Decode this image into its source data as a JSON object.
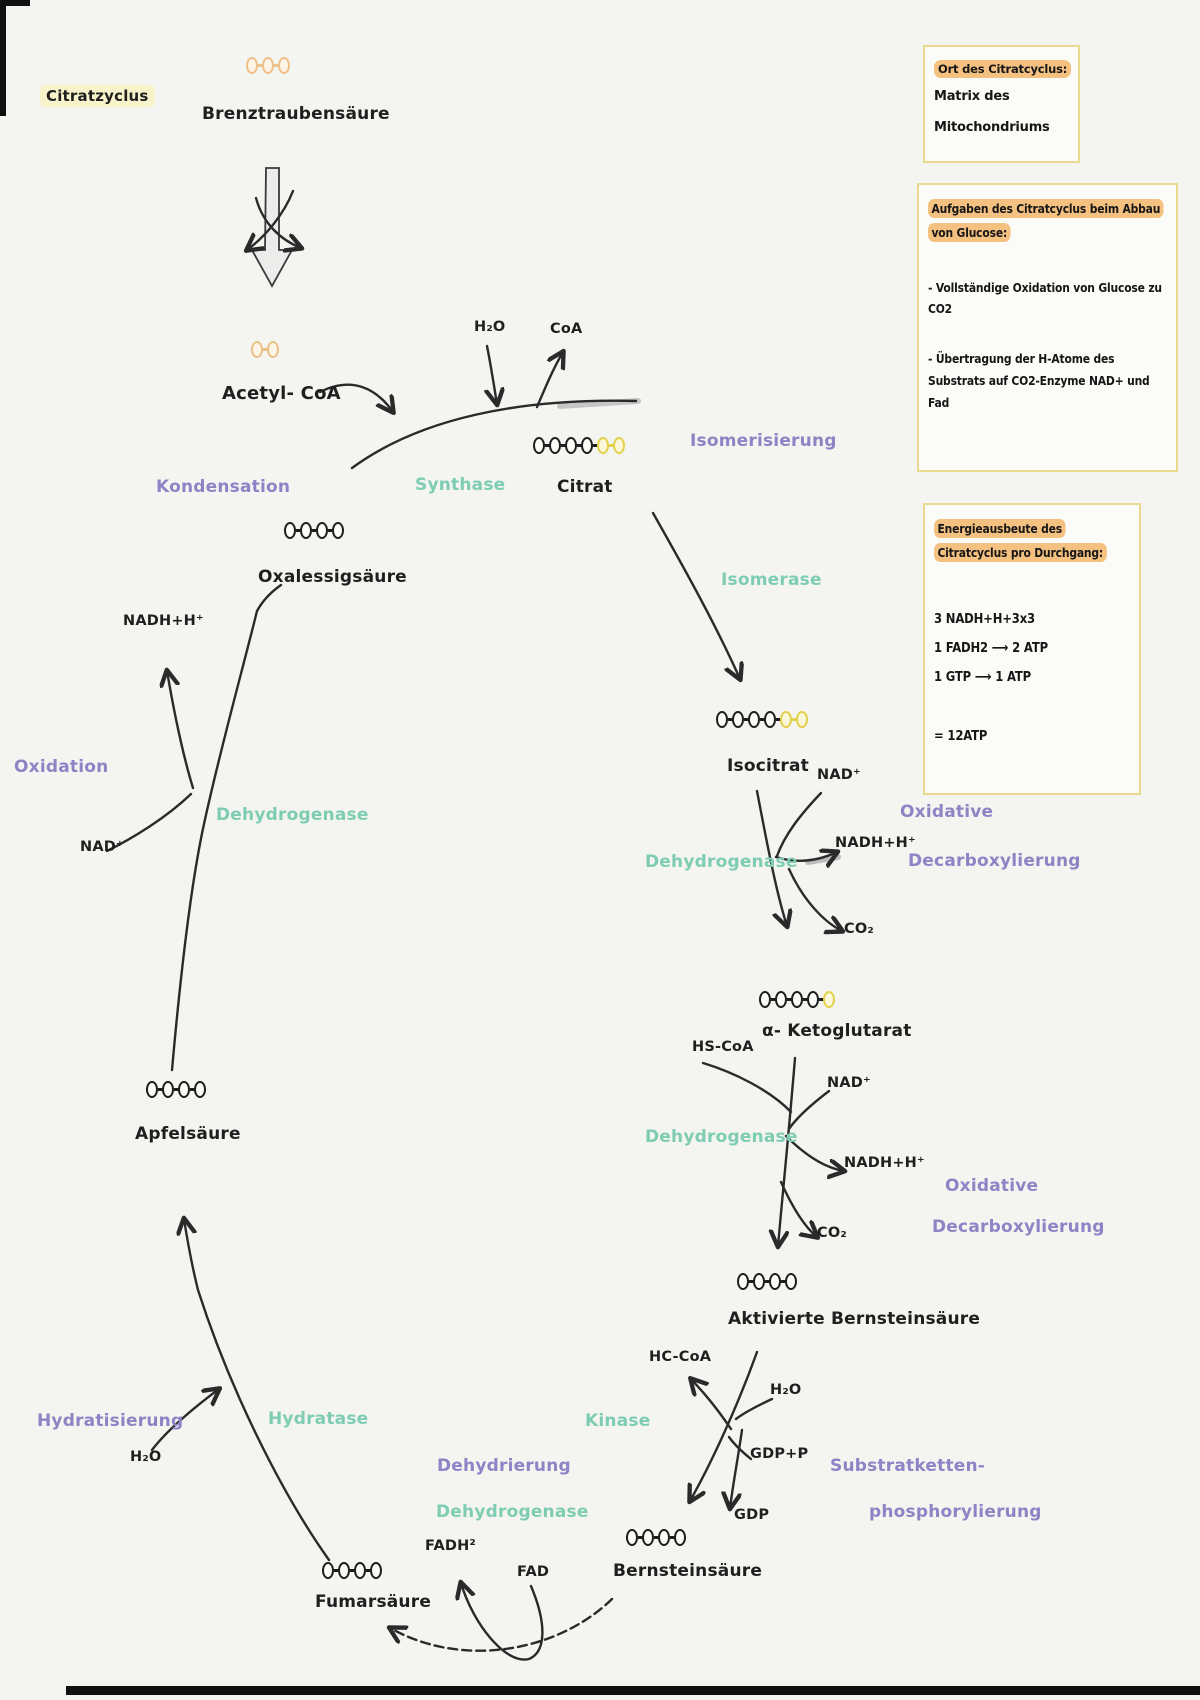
{
  "colors": {
    "purple": "#9083c5",
    "teal": "#7ecdb3",
    "orange": "#edc089",
    "yellow": "#e3d14b",
    "highlight": "#f5c181",
    "pale": "#f8f3cb",
    "boxborder": "#ead98e"
  },
  "labels": {
    "citratzyclus": "Citratzyclus",
    "brenztraubensaeure": "Brenztraubensäure",
    "acetyl_coa": "Acetyl- CoA",
    "h2o_top": "H₂O",
    "coa_top": "CoA",
    "kondensation": "Kondensation",
    "synthase": "Synthase",
    "citrat": "Citrat",
    "isomerisierung": "Isomerisierung",
    "oxalessigsaeure": "Oxalessigsäure",
    "isomerase": "Isomerase",
    "nadh_h_left": "NADH+H⁺",
    "oxidation": "Oxidation",
    "dehydrogenase_left": "Dehydrogenase",
    "nad_left": "NAD⁺",
    "isocitrat": "Isocitrat",
    "nad_1": "NAD⁺",
    "nadh_h_1": "NADH+H⁺",
    "dehydrogenase_1": "Dehydrogenase",
    "oxidative_1": "Oxidative",
    "decarboxylierung_1": "Decarboxylierung",
    "co2_1": "CO₂",
    "ketoglutarat": "α- Ketoglutarat",
    "hs_coa": "HS-CoA",
    "nad_2": "NAD⁺",
    "dehydrogenase_2": "Dehydrogenase",
    "nadh_h_2": "NADH+H⁺",
    "co2_2": "CO₂",
    "oxidative_2": "Oxidative",
    "decarboxylierung_2": "Decarboxylierung",
    "aktivierte_bernsteinsaeure": "Aktivierte Bernsteinsäure",
    "hc_coa": "HC-CoA",
    "h2o_right": "H₂O",
    "kinase": "Kinase",
    "gdp_p": "GDP+P",
    "gdp": "GDP",
    "substratketten": "Substratketten-",
    "phosphorylierung": "phosphorylierung",
    "bernsteinsaeure": "Bernsteinsäure",
    "fadh2": "FADH²",
    "fad": "FAD",
    "dehydrierung": "Dehydrierung",
    "dehydrogenase_3": "Dehydrogenase",
    "fumarsaeure": "Fumarsäure",
    "hydratase": "Hydratase",
    "hydratisierung": "Hydratisierung",
    "h2o_left": "H₂O",
    "aepfelsaeure": "Apfelsäure"
  },
  "molecules": {
    "brenztraubensaeure": "ooo",
    "acetyl_coa": "oo",
    "citrat": "kkkkyy",
    "oxalessigsaeure": "kkkk",
    "isocitrat": "kkkkyy",
    "ketoglutarat": "kkkky",
    "aktivierte_bernsteinsaeure": "kkkk",
    "bernsteinsaeure": "kkkk",
    "fumarsaeure": "kkkk",
    "aepfelsaeure": "kkkk"
  },
  "boxes": {
    "ort": {
      "title": "Ort des Citratcyclus:",
      "line1": "Matrix des",
      "line2": "Mitochondriums"
    },
    "aufgaben": {
      "title": "Aufgaben des Citratcyclus beim Abbau von Glucose:",
      "item1": "- Vollständige Oxidation von Glucose zu CO2",
      "item2": "- Übertragung der H-Atome des Substrats auf CO2-Enzyme NAD+ und Fad"
    },
    "energie": {
      "title": "Energieausbeute des Citratcyclus pro Durchgang:",
      "line1": "3 NADH+H+3x3",
      "line2": "1 FADH2 ⟶ 2 ATP",
      "line3": "1 GTP ⟶ 1 ATP",
      "total": "= 12ATP"
    }
  }
}
